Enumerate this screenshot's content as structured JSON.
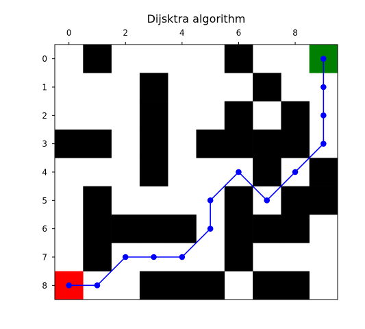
{
  "chart_data": {
    "type": "heatmap",
    "title": "Dijsktra algorithm",
    "xlabel": "",
    "ylabel": "",
    "x_axis_position": "top",
    "y_axis_inverted": true,
    "grid": false,
    "n_cols": 10,
    "n_rows": 9,
    "xticks": [
      0,
      2,
      4,
      6,
      8
    ],
    "yticks": [
      0,
      1,
      2,
      3,
      4,
      5,
      6,
      7,
      8
    ],
    "xlim": [
      -0.5,
      9.5
    ],
    "ylim": [
      8.5,
      -0.5
    ],
    "grid_values": [
      [
        0,
        1,
        0,
        0,
        0,
        0,
        1,
        0,
        0,
        0
      ],
      [
        0,
        0,
        0,
        1,
        0,
        0,
        0,
        1,
        0,
        0
      ],
      [
        0,
        0,
        0,
        1,
        0,
        0,
        1,
        0,
        1,
        0
      ],
      [
        1,
        1,
        0,
        1,
        0,
        1,
        1,
        1,
        1,
        0
      ],
      [
        0,
        0,
        0,
        1,
        0,
        0,
        0,
        1,
        0,
        1
      ],
      [
        0,
        1,
        0,
        0,
        0,
        0,
        1,
        0,
        1,
        1
      ],
      [
        0,
        1,
        1,
        1,
        1,
        0,
        1,
        1,
        1,
        0
      ],
      [
        0,
        1,
        0,
        0,
        0,
        0,
        1,
        0,
        0,
        0
      ],
      [
        0,
        0,
        0,
        1,
        1,
        1,
        0,
        1,
        1,
        0
      ]
    ],
    "start": {
      "col": 0,
      "row": 8
    },
    "goal": {
      "col": 9,
      "row": 0
    },
    "path": {
      "x": [
        0,
        1,
        2,
        3,
        4,
        5,
        5,
        6,
        7,
        8,
        9,
        9,
        9,
        9
      ],
      "y": [
        8,
        8,
        7,
        7,
        7,
        6,
        5,
        4,
        5,
        4,
        3,
        2,
        1,
        0
      ]
    },
    "colors": {
      "wall": "#000000",
      "free": "#ffffff",
      "start": "#ff0000",
      "goal": "#008000",
      "path": "#0000ff"
    }
  }
}
